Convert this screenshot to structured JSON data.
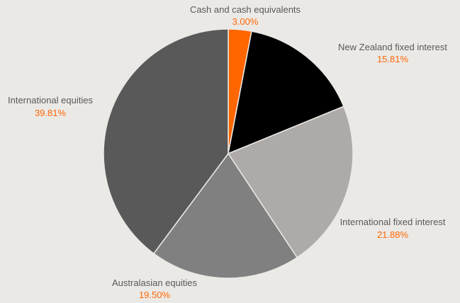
{
  "chart_data": {
    "type": "pie",
    "title": "",
    "slices": [
      {
        "label": "Cash and cash equivalents",
        "value_label": "3.00%",
        "value": 3.0,
        "color": "#ff6600"
      },
      {
        "label": "New Zealand fixed interest",
        "value_label": "15.81%",
        "value": 15.81,
        "color": "#000000"
      },
      {
        "label": "International fixed interest",
        "value_label": "21.88%",
        "value": 21.88,
        "color": "#aeaaa8"
      },
      {
        "label": "Australasian equities",
        "value_label": "19.50%",
        "value": 19.5,
        "color": "#808080"
      },
      {
        "label": "International equities",
        "value_label": "39.81%",
        "value": 39.81,
        "color": "#595959"
      }
    ],
    "value_label_color": "#ff6600",
    "label_color": "#595959",
    "background": "#ebe9e6",
    "start_angle": "top (12 o'clock)",
    "direction": "clockwise"
  }
}
